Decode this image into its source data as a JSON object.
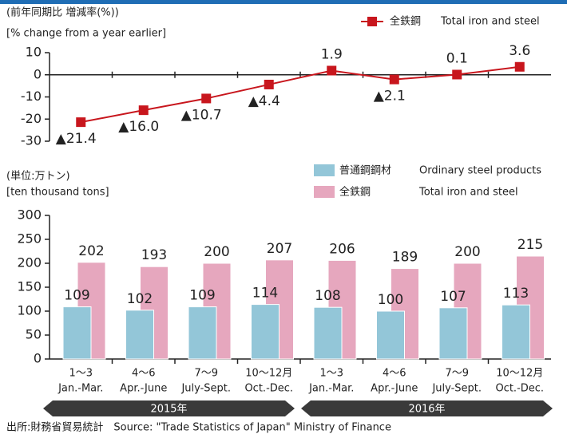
{
  "chart_data": [
    {
      "type": "line",
      "ylabel": "(前年同期比 増減率(%))",
      "ylabel_en": "[% change from a year earlier]",
      "ylim": [
        -30,
        10
      ],
      "yticks": [
        10,
        0,
        -10,
        -20,
        -30
      ],
      "series": [
        {
          "name": "全鉄鋼",
          "name_en": "Total iron and steel",
          "color": "#c8161d",
          "values": [
            -21.4,
            -16.0,
            -10.7,
            -4.4,
            1.9,
            -2.1,
            0.1,
            3.6
          ],
          "value_labels": [
            "▲21.4",
            "▲16.0",
            "▲10.7",
            "▲4.4",
            "1.9",
            "▲2.1",
            "0.1",
            "3.6"
          ]
        }
      ]
    },
    {
      "type": "bar",
      "ylabel": "(単位:万トン)",
      "ylabel_en": "[ten thousand tons]",
      "categories": [
        "1〜3",
        "4〜6",
        "7〜9",
        "10〜12月",
        "1〜3",
        "4〜6",
        "7〜9",
        "10〜12月"
      ],
      "categories_en": [
        "Jan.-Mar.",
        "Apr.-June",
        "July-Sept.",
        "Oct.-Dec.",
        "Jan.-Mar.",
        "Apr.-June",
        "July-Sept.",
        "Oct.-Dec."
      ],
      "ylim": [
        0,
        300
      ],
      "yticks": [
        0,
        50,
        100,
        150,
        200,
        250,
        300
      ],
      "series": [
        {
          "name": "普通鋼鋼材",
          "name_en": "Ordinary steel products",
          "color": "#93c6d8",
          "values": [
            109,
            102,
            109,
            114,
            108,
            100,
            107,
            113
          ]
        },
        {
          "name": "全鉄鋼",
          "name_en": "Total iron and steel",
          "color": "#e6a7be",
          "values": [
            202,
            193,
            200,
            207,
            206,
            189,
            200,
            215
          ]
        }
      ]
    }
  ],
  "year_groups": [
    "2015年",
    "2016年"
  ],
  "source": "出所:財務省貿易統計　Source: \"Trade Statistics of Japan\" Ministry of Finance"
}
